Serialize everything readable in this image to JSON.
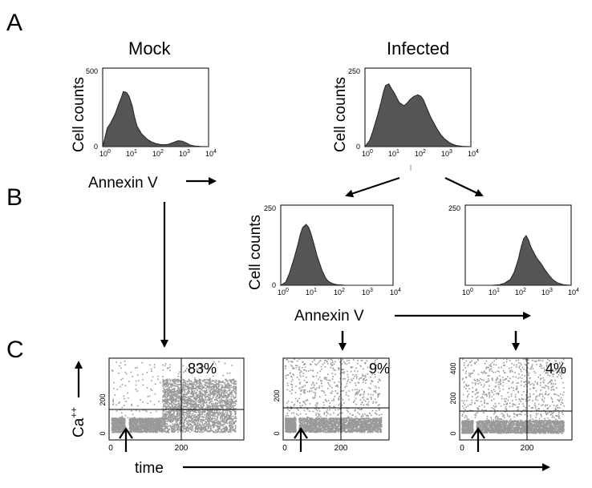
{
  "panels": {
    "a": "A",
    "b": "B",
    "c": "C"
  },
  "titles": {
    "mock": "Mock",
    "infected": "Infected"
  },
  "axis": {
    "cell_counts": "Cell counts",
    "annexin": "Annexin V",
    "time": "time",
    "ca": "Ca",
    "ca_sup": "++"
  },
  "chart_data": [
    {
      "id": "histA_mock",
      "type": "area",
      "ylabel": "Cell counts",
      "xlabel": "Annexin V",
      "xscale": "log",
      "xlim": [
        1,
        10000
      ],
      "ylim": [
        0,
        500
      ],
      "yticks": [
        "0",
        "500"
      ],
      "xticks": [
        "10^0",
        "10^1",
        "10^2",
        "10^3",
        "10^4"
      ],
      "x": [
        1,
        1.5,
        2,
        3,
        4,
        5,
        6,
        8,
        10,
        13,
        16,
        20,
        30,
        50,
        70,
        100,
        150,
        200,
        300,
        500,
        700,
        1000,
        1500,
        2000,
        3000,
        5000,
        10000
      ],
      "y": [
        0,
        120,
        150,
        210,
        270,
        310,
        350,
        345,
        320,
        260,
        190,
        130,
        80,
        45,
        30,
        20,
        14,
        12,
        15,
        28,
        38,
        35,
        22,
        10,
        4,
        1,
        0
      ]
    },
    {
      "id": "histA_infected",
      "type": "area",
      "ylabel": "Cell counts",
      "xscale": "log",
      "xlim": [
        1,
        10000
      ],
      "ylim": [
        0,
        250
      ],
      "yticks": [
        "0",
        "250"
      ],
      "xticks": [
        "10^0",
        "10^1",
        "10^2",
        "10^3",
        "10^4"
      ],
      "x": [
        1,
        1.5,
        2,
        3,
        4,
        5,
        6,
        8,
        10,
        13,
        16,
        20,
        30,
        40,
        50,
        70,
        100,
        130,
        160,
        200,
        300,
        500,
        700,
        1000,
        1500,
        2000,
        3000,
        5000,
        10000
      ],
      "y": [
        0,
        20,
        50,
        100,
        140,
        175,
        195,
        200,
        185,
        170,
        155,
        140,
        130,
        140,
        150,
        160,
        165,
        160,
        150,
        130,
        95,
        60,
        40,
        25,
        14,
        8,
        3,
        1,
        0
      ]
    },
    {
      "id": "histB_low",
      "type": "area",
      "ylabel": "Cell counts",
      "xlabel": "Annexin V",
      "xscale": "log",
      "xlim": [
        1,
        10000
      ],
      "ylim": [
        0,
        250
      ],
      "yticks": [
        "0",
        "250"
      ],
      "xticks": [
        "10^0",
        "10^1",
        "10^2",
        "10^3",
        "10^4"
      ],
      "x": [
        1,
        1.5,
        2,
        3,
        4,
        5,
        6,
        8,
        10,
        12,
        15,
        20,
        30,
        40,
        50,
        70,
        100,
        150,
        200,
        500,
        10000
      ],
      "y": [
        0,
        10,
        35,
        85,
        125,
        160,
        180,
        190,
        180,
        160,
        130,
        90,
        45,
        22,
        12,
        5,
        2,
        1,
        0,
        0,
        0
      ]
    },
    {
      "id": "histB_high",
      "type": "area",
      "xscale": "log",
      "xlim": [
        1,
        10000
      ],
      "ylim": [
        0,
        250
      ],
      "yticks": [
        "0",
        "250"
      ],
      "xticks": [
        "10^0",
        "10^1",
        "10^2",
        "10^3",
        "10^4"
      ],
      "x": [
        1,
        10,
        20,
        30,
        50,
        70,
        100,
        130,
        160,
        200,
        250,
        300,
        400,
        500,
        700,
        1000,
        1500,
        2000,
        3000,
        5000,
        10000
      ],
      "y": [
        0,
        0,
        2,
        6,
        18,
        40,
        80,
        120,
        145,
        155,
        140,
        120,
        100,
        85,
        70,
        50,
        30,
        18,
        8,
        2,
        0
      ]
    },
    {
      "id": "caC_mock",
      "type": "scatter",
      "xlabel": "time",
      "ylabel": "Ca++",
      "xlim": [
        0,
        330
      ],
      "ylim": [
        0,
        400
      ],
      "xticks": [
        "0",
        "200"
      ],
      "yticks": [
        "0",
        "200"
      ],
      "gate_x": 200,
      "gate_y": 140,
      "percent": "83%"
    },
    {
      "id": "caC_low",
      "type": "scatter",
      "xlim": [
        0,
        330
      ],
      "ylim": [
        0,
        400
      ],
      "xticks": [
        "0",
        "200"
      ],
      "yticks": [
        "0",
        "200"
      ],
      "gate_x": 200,
      "gate_y": 140,
      "percent": "9%"
    },
    {
      "id": "caC_high",
      "type": "scatter",
      "xlim": [
        0,
        330
      ],
      "ylim": [
        0,
        450
      ],
      "xticks": [
        "0",
        "200"
      ],
      "yticks": [
        "0",
        "200",
        "400"
      ],
      "gate_x": 200,
      "gate_y": 140,
      "percent": "4%"
    }
  ]
}
